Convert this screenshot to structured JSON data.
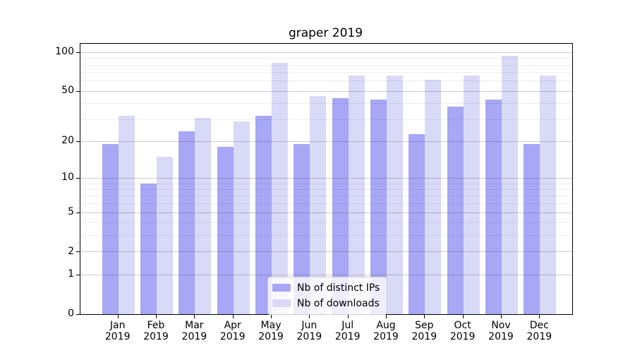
{
  "title": "graper 2019",
  "chart_data": {
    "type": "bar",
    "title": "graper 2019",
    "categories": [
      "Jan 2019",
      "Feb 2019",
      "Mar 2019",
      "Apr 2019",
      "May 2019",
      "Jun 2019",
      "Jul 2019",
      "Aug 2019",
      "Sep 2019",
      "Oct 2019",
      "Nov 2019",
      "Dec 2019"
    ],
    "series": [
      {
        "name": "Nb of distinct IPs",
        "color": "#a7a7f6",
        "values": [
          19,
          9,
          24,
          18,
          32,
          19,
          44,
          43,
          23,
          38,
          43,
          19
        ]
      },
      {
        "name": "Nb of downloads",
        "color": "#d9d9f8",
        "values": [
          32,
          15,
          31,
          29,
          83,
          46,
          66,
          66,
          61,
          66,
          94,
          66
        ]
      }
    ],
    "xlabel": "",
    "ylabel": "",
    "y_axis": {
      "scale": "log1p",
      "ticks": [
        0,
        1,
        2,
        5,
        10,
        20,
        50,
        100
      ],
      "minor_ticks": [
        3,
        4,
        6,
        7,
        8,
        9,
        30,
        40,
        60,
        70,
        80,
        90
      ],
      "range": [
        0,
        108
      ]
    },
    "grid": true,
    "legend_position": "lower center"
  },
  "colors": {
    "background": "#ffffff",
    "spine": "#000000",
    "bar_ips": "#a7a7f6",
    "bar_downloads": "#d9d9f8",
    "grid_major": "#c7c7c7",
    "grid_minor": "#ebebeb",
    "legend_border": "#cccccc"
  }
}
